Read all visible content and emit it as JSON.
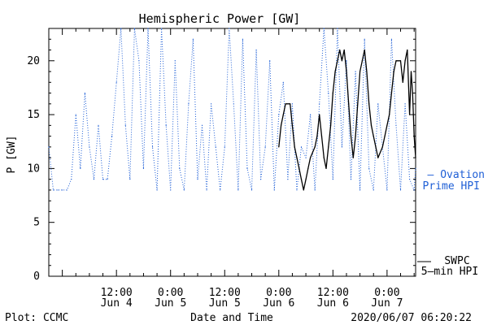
{
  "chart_data": {
    "type": "line",
    "title": "Hemispheric Power [GW]",
    "xlabel": "Date and Time",
    "ylabel": "P [GW]",
    "ylim": [
      0,
      23
    ],
    "xlim": [
      "2020-06-03 21:00",
      "2020-06-07 06:20"
    ],
    "y_ticks": [
      0,
      5,
      10,
      15,
      20
    ],
    "x_ticks": [
      {
        "at": "2020-06-04 12:00",
        "time": "12:00",
        "date": "Jun 4"
      },
      {
        "at": "2020-06-05 00:00",
        "time": "0:00",
        "date": "Jun 5"
      },
      {
        "at": "2020-06-05 12:00",
        "time": "12:00",
        "date": "Jun 5"
      },
      {
        "at": "2020-06-06 00:00",
        "time": "0:00",
        "date": "Jun 6"
      },
      {
        "at": "2020-06-06 12:00",
        "time": "12:00",
        "date": "Jun 6"
      },
      {
        "at": "2020-06-07 00:00",
        "time": "0:00",
        "date": "Jun 7"
      }
    ],
    "grid": false,
    "series": [
      {
        "name": "Ovation Prime HPI",
        "legend_line1": "— Ovation",
        "legend_line2": "Prime HPI",
        "color": "#1f5fd6",
        "style": "dotted",
        "points": [
          [
            "2020-06-03 21:00",
            12
          ],
          [
            "2020-06-03 22:00",
            8
          ],
          [
            "2020-06-03 23:00",
            8
          ],
          [
            "2020-06-04 00:00",
            8
          ],
          [
            "2020-06-04 01:00",
            8
          ],
          [
            "2020-06-04 02:00",
            9
          ],
          [
            "2020-06-04 03:00",
            15
          ],
          [
            "2020-06-04 04:00",
            10
          ],
          [
            "2020-06-04 05:00",
            17
          ],
          [
            "2020-06-04 06:00",
            12
          ],
          [
            "2020-06-04 07:00",
            9
          ],
          [
            "2020-06-04 08:00",
            14
          ],
          [
            "2020-06-04 09:00",
            9
          ],
          [
            "2020-06-04 10:00",
            9
          ],
          [
            "2020-06-04 11:00",
            13
          ],
          [
            "2020-06-04 12:00",
            18
          ],
          [
            "2020-06-04 13:00",
            23
          ],
          [
            "2020-06-04 14:00",
            14
          ],
          [
            "2020-06-04 15:00",
            9
          ],
          [
            "2020-06-04 16:00",
            23
          ],
          [
            "2020-06-04 17:00",
            20
          ],
          [
            "2020-06-04 18:00",
            10
          ],
          [
            "2020-06-04 19:00",
            23
          ],
          [
            "2020-06-04 20:00",
            12
          ],
          [
            "2020-06-04 21:00",
            8
          ],
          [
            "2020-06-04 22:00",
            23
          ],
          [
            "2020-06-04 23:00",
            14
          ],
          [
            "2020-06-05 00:00",
            8
          ],
          [
            "2020-06-05 01:00",
            20
          ],
          [
            "2020-06-05 02:00",
            10
          ],
          [
            "2020-06-05 03:00",
            8
          ],
          [
            "2020-06-05 04:00",
            16
          ],
          [
            "2020-06-05 05:00",
            22
          ],
          [
            "2020-06-05 06:00",
            9
          ],
          [
            "2020-06-05 07:00",
            14
          ],
          [
            "2020-06-05 08:00",
            8
          ],
          [
            "2020-06-05 09:00",
            16
          ],
          [
            "2020-06-05 10:00",
            12
          ],
          [
            "2020-06-05 11:00",
            8
          ],
          [
            "2020-06-05 12:00",
            12
          ],
          [
            "2020-06-05 13:00",
            23
          ],
          [
            "2020-06-05 14:00",
            16
          ],
          [
            "2020-06-05 15:00",
            8
          ],
          [
            "2020-06-05 16:00",
            22
          ],
          [
            "2020-06-05 17:00",
            10
          ],
          [
            "2020-06-05 18:00",
            8
          ],
          [
            "2020-06-05 19:00",
            21
          ],
          [
            "2020-06-05 20:00",
            9
          ],
          [
            "2020-06-05 21:00",
            12
          ],
          [
            "2020-06-05 22:00",
            20
          ],
          [
            "2020-06-05 23:00",
            8
          ],
          [
            "2020-06-06 00:00",
            15
          ],
          [
            "2020-06-06 01:00",
            18
          ],
          [
            "2020-06-06 02:00",
            9
          ],
          [
            "2020-06-06 03:00",
            16
          ],
          [
            "2020-06-06 04:00",
            8
          ],
          [
            "2020-06-06 05:00",
            12
          ],
          [
            "2020-06-06 06:00",
            11
          ],
          [
            "2020-06-06 07:00",
            15
          ],
          [
            "2020-06-06 08:00",
            8
          ],
          [
            "2020-06-06 09:00",
            16
          ],
          [
            "2020-06-06 10:00",
            23
          ],
          [
            "2020-06-06 11:00",
            17
          ],
          [
            "2020-06-06 12:00",
            9
          ],
          [
            "2020-06-06 13:00",
            23
          ],
          [
            "2020-06-06 14:00",
            12
          ],
          [
            "2020-06-06 15:00",
            20
          ],
          [
            "2020-06-06 16:00",
            9
          ],
          [
            "2020-06-06 17:00",
            19
          ],
          [
            "2020-06-06 18:00",
            8
          ],
          [
            "2020-06-06 19:00",
            22
          ],
          [
            "2020-06-06 20:00",
            10
          ],
          [
            "2020-06-06 21:00",
            8
          ],
          [
            "2020-06-06 22:00",
            16
          ],
          [
            "2020-06-06 23:00",
            12
          ],
          [
            "2020-06-07 00:00",
            8
          ],
          [
            "2020-06-07 01:00",
            22
          ],
          [
            "2020-06-07 02:00",
            14
          ],
          [
            "2020-06-07 03:00",
            8
          ],
          [
            "2020-06-07 04:00",
            16
          ],
          [
            "2020-06-07 05:00",
            9
          ],
          [
            "2020-06-07 06:00",
            8
          ],
          [
            "2020-06-07 06:20",
            10
          ]
        ]
      },
      {
        "name": "SWPC 5-min HPI",
        "legend_line1": "SWPC",
        "legend_line2": "5—min HPI",
        "color": "#000000",
        "style": "solid",
        "points": [
          [
            "2020-06-06 00:00",
            12
          ],
          [
            "2020-06-06 00:30",
            14
          ],
          [
            "2020-06-06 01:00",
            15
          ],
          [
            "2020-06-06 01:30",
            16
          ],
          [
            "2020-06-06 02:30",
            16
          ],
          [
            "2020-06-06 03:00",
            14
          ],
          [
            "2020-06-06 03:30",
            12
          ],
          [
            "2020-06-06 04:00",
            11
          ],
          [
            "2020-06-06 04:30",
            10
          ],
          [
            "2020-06-06 05:00",
            9
          ],
          [
            "2020-06-06 05:30",
            8
          ],
          [
            "2020-06-06 06:00",
            9
          ],
          [
            "2020-06-06 06:30",
            10
          ],
          [
            "2020-06-06 07:00",
            11
          ],
          [
            "2020-06-06 08:00",
            12
          ],
          [
            "2020-06-06 08:30",
            13
          ],
          [
            "2020-06-06 09:00",
            15
          ],
          [
            "2020-06-06 09:30",
            13
          ],
          [
            "2020-06-06 10:00",
            11
          ],
          [
            "2020-06-06 10:30",
            10
          ],
          [
            "2020-06-06 11:00",
            12
          ],
          [
            "2020-06-06 11:30",
            14
          ],
          [
            "2020-06-06 12:00",
            17
          ],
          [
            "2020-06-06 12:30",
            19
          ],
          [
            "2020-06-06 13:00",
            20
          ],
          [
            "2020-06-06 13:30",
            21
          ],
          [
            "2020-06-06 14:00",
            20
          ],
          [
            "2020-06-06 14:30",
            21
          ],
          [
            "2020-06-06 15:00",
            19
          ],
          [
            "2020-06-06 15:30",
            16
          ],
          [
            "2020-06-06 16:00",
            13
          ],
          [
            "2020-06-06 16:30",
            11
          ],
          [
            "2020-06-06 17:00",
            13
          ],
          [
            "2020-06-06 17:30",
            16
          ],
          [
            "2020-06-06 18:00",
            19
          ],
          [
            "2020-06-06 18:30",
            20
          ],
          [
            "2020-06-06 19:00",
            21
          ],
          [
            "2020-06-06 19:30",
            19
          ],
          [
            "2020-06-06 20:00",
            16
          ],
          [
            "2020-06-06 20:30",
            14
          ],
          [
            "2020-06-06 21:00",
            13
          ],
          [
            "2020-06-06 21:30",
            12
          ],
          [
            "2020-06-06 22:00",
            11
          ],
          [
            "2020-06-06 23:00",
            12
          ],
          [
            "2020-06-06 23:30",
            13
          ],
          [
            "2020-06-07 00:00",
            14
          ],
          [
            "2020-06-07 00:30",
            15
          ],
          [
            "2020-06-07 01:00",
            17
          ],
          [
            "2020-06-07 01:30",
            19
          ],
          [
            "2020-06-07 02:00",
            20
          ],
          [
            "2020-06-07 03:00",
            20
          ],
          [
            "2020-06-07 03:30",
            18
          ],
          [
            "2020-06-07 04:00",
            20
          ],
          [
            "2020-06-07 04:30",
            21
          ],
          [
            "2020-06-07 05:00",
            15
          ],
          [
            "2020-06-07 05:20",
            19
          ],
          [
            "2020-06-07 05:40",
            17
          ],
          [
            "2020-06-07 06:00",
            13
          ],
          [
            "2020-06-07 06:20",
            11
          ]
        ]
      }
    ]
  },
  "footer": {
    "left": "Plot: CCMC",
    "right": "2020/06/07 06:20:22"
  }
}
